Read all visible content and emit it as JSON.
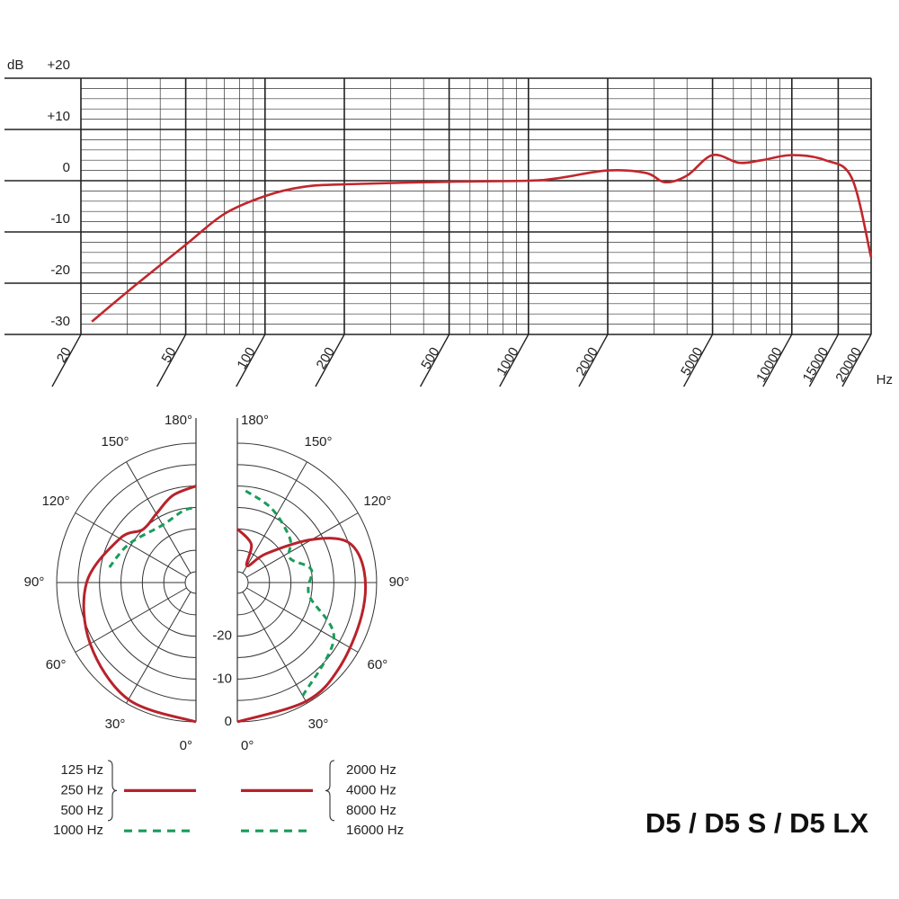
{
  "title": "D5 / D5 S / D5 LX",
  "chart_data": [
    {
      "type": "line",
      "ylabel": "dB",
      "xlabel": "Hz",
      "xscale": "log",
      "grid": true,
      "xlim": [
        20,
        20000
      ],
      "ylim": [
        -30,
        20
      ],
      "xticks": [
        20,
        50,
        100,
        200,
        500,
        1000,
        2000,
        5000,
        10000,
        15000,
        20000
      ],
      "yticks": [
        -30,
        -20,
        -10,
        0,
        {
          "value": 10,
          "label": "+10"
        },
        {
          "value": 20,
          "label": "+20"
        }
      ],
      "x": [
        22,
        32,
        50,
        70,
        100,
        140,
        200,
        500,
        1000,
        1300,
        2000,
        2800,
        3300,
        4000,
        5000,
        6300,
        7700,
        10000,
        13400,
        16900,
        20000
      ],
      "series": [
        {
          "color": "#c1272d",
          "values": [
            -27.5,
            -20.5,
            -12.5,
            -6.5,
            -3,
            -1.2,
            -0.7,
            -0.2,
            0,
            0.5,
            2,
            1.5,
            -0.3,
            1,
            5,
            3.5,
            4,
            5,
            4,
            0.5,
            -15
          ]
        }
      ]
    },
    {
      "type": "polar",
      "rlim": [
        -30,
        0
      ],
      "rticks": [
        -20,
        -10,
        0
      ],
      "thetaticks": [
        {
          "value": 0,
          "label": "0°"
        },
        {
          "value": 30,
          "label": "30°"
        },
        {
          "value": 60,
          "label": "60°"
        },
        {
          "value": 90,
          "label": "90°"
        },
        {
          "value": 120,
          "label": "120°"
        },
        {
          "value": 150,
          "label": "150°"
        },
        {
          "value": 180,
          "label": "180°"
        }
      ],
      "halves": [
        {
          "side": "left",
          "series": [
            {
              "names": [
                "125 Hz",
                "250 Hz",
                "500 Hz"
              ],
              "color": "#b8222b",
              "dashed": false,
              "theta": [
                0,
                30,
                60,
                90,
                120,
                135,
                150,
                165,
                180
              ],
              "values": [
                0,
                -1,
                -4,
                -7,
                -12,
                -15,
                -14,
                -11.5,
                -10
              ]
            },
            {
              "names": [
                "1000 Hz"
              ],
              "color": "#1a9c5a",
              "dashed": true,
              "theta": [
                100,
                120,
                150,
                170,
                180
              ],
              "values": [
                -12,
                -14.5,
                -17,
                -15.5,
                -15
              ]
            }
          ]
        },
        {
          "side": "right",
          "series": [
            {
              "names": [
                "2000 Hz",
                "4000 Hz",
                "8000 Hz"
              ],
              "color": "#b8222b",
              "dashed": false,
              "theta": [
                0,
                30,
                50,
                75,
                95,
                110,
                120,
                135,
                150,
                160,
                180
              ],
              "values": [
                0,
                -0.5,
                -1.5,
                -2.5,
                -2.8,
                -5,
                -12.5,
                -23,
                -28,
                -23,
                -20
              ]
            },
            {
              "names": [
                "16000 Hz"
              ],
              "color": "#1a9c5a",
              "dashed": true,
              "theta": [
                30,
                60,
                80,
                100,
                115,
                130,
                155,
                175
              ],
              "values": [
                -2,
                -6.5,
                -15.5,
                -15,
                -19,
                -16.5,
                -13.5,
                -11
              ]
            }
          ]
        }
      ]
    }
  ]
}
